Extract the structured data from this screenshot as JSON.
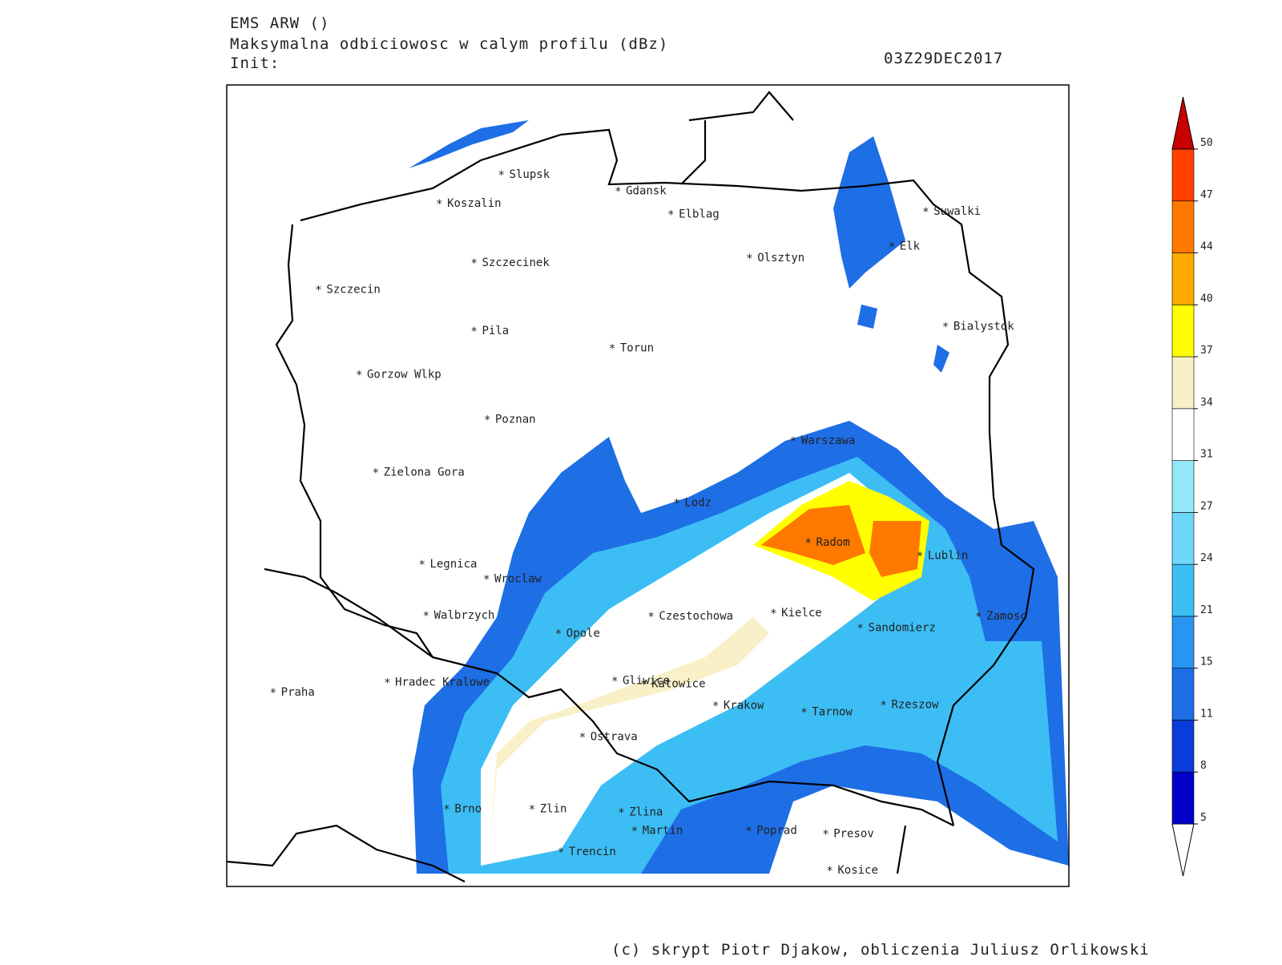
{
  "header": {
    "line1": "EMS ARW ()",
    "line2": "Maksymalna odbiciowosc w calym profilu (dBz)",
    "line3": "Init:",
    "valid": "03Z29DEC2017"
  },
  "cities": [
    "Slupsk",
    "Koszalin",
    "Gdansk",
    "Elblag",
    "Szczecinek",
    "Olsztyn",
    "Szczecin",
    "Suwalki",
    "Elk",
    "Pila",
    "Torun",
    "Bialystok",
    "Gorzow Wlkp",
    "Poznan",
    "Warszawa",
    "Zielona Gora",
    "Lodz",
    "Radom",
    "Lublin",
    "Legnica",
    "Wroclaw",
    "Walbrzych",
    "Czestochowa",
    "Kielce",
    "Zamosc",
    "Opole",
    "Sandomierz",
    "Praha",
    "Hradec Kralowe",
    "Gliwice",
    "Katowice",
    "Krakow",
    "Tarnow",
    "Rzeszow",
    "Ostrava",
    "Brno",
    "Zlin",
    "Zlina",
    "Martin",
    "Poprad",
    "Presov",
    "Trencin",
    "Kosice"
  ],
  "colorbar": {
    "levels": [
      5,
      8,
      11,
      15,
      21,
      24,
      27,
      31,
      34,
      37,
      40,
      44,
      47,
      50
    ],
    "colors": [
      "#ffffff",
      "#0000c8",
      "#0a3cdc",
      "#1e6ee6",
      "#2896f0",
      "#3cbef5",
      "#6ed7fa",
      "#96e6fa",
      "#ffffff",
      "#faf0c8",
      "#ffff00",
      "#ffaa00",
      "#ff7800",
      "#ff4000",
      "#dc1400",
      "#c80000"
    ]
  },
  "footer": "(c) skrypt Piotr Djakow, obliczenia Juliusz Orlikowski"
}
